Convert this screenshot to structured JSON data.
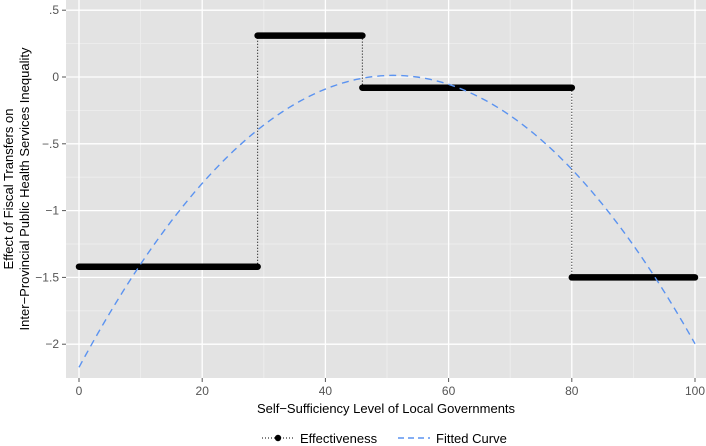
{
  "chart_data": {
    "type": "line",
    "title": "",
    "xlabel": "Self−Sufficiency Level of Local Governments",
    "ylabel_lines": [
      "Effect of Fiscal Transfers on",
      "Inter−Provincial Public Health Services Inequality"
    ],
    "xlim": [
      -1,
      101
    ],
    "ylim": [
      -2.25,
      0.5
    ],
    "x_ticks": [
      0,
      20,
      40,
      60,
      80,
      100
    ],
    "x_tick_labels": [
      "0",
      "20",
      "40",
      "60",
      "80",
      "100"
    ],
    "y_ticks": [
      0.5,
      0,
      -0.5,
      -1,
      -1.5,
      -2
    ],
    "y_tick_labels": [
      ".5",
      "0",
      "−.5",
      "−1",
      "−1.5",
      "−2"
    ],
    "grid": true,
    "legend_position": "bottom",
    "series": [
      {
        "name": "Effectiveness",
        "style": "step-dots",
        "color": "#000000",
        "segments": [
          {
            "x_start": 0,
            "x_end": 29,
            "y": -1.42
          },
          {
            "x_start": 29,
            "x_end": 46,
            "y": 0.31
          },
          {
            "x_start": 46,
            "x_end": 80,
            "y": -0.08
          },
          {
            "x_start": 80,
            "x_end": 100,
            "y": -1.5
          }
        ]
      },
      {
        "name": "Fitted Curve",
        "style": "dashed",
        "color": "#5b93f0",
        "x": [
          0,
          10,
          20,
          30,
          40,
          50,
          60,
          70,
          80,
          90,
          100
        ],
        "y": [
          -2.16,
          -1.39,
          -0.81,
          -0.39,
          -0.1,
          0.02,
          -0.05,
          -0.27,
          -0.68,
          -1.25,
          -2.02
        ]
      }
    ]
  },
  "colors": {
    "panel_background": "#e3e3e3",
    "grid_major": "#ffffff",
    "grid_minor": "#efefef"
  }
}
